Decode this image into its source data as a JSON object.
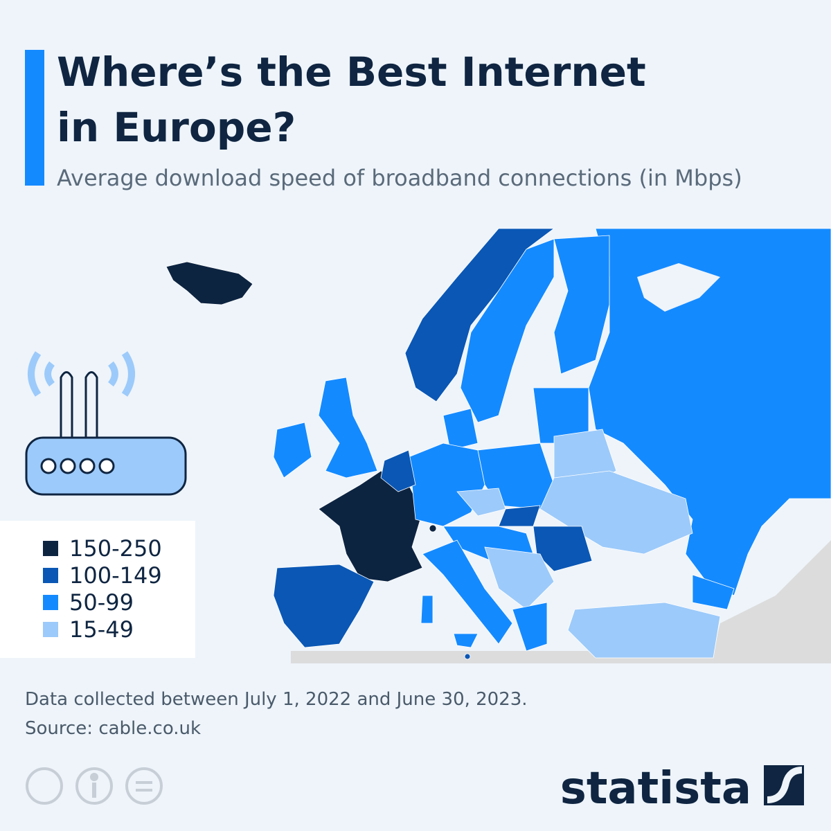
{
  "header": {
    "title_lines": [
      "Where’s the Best Internet",
      "in Europe?"
    ],
    "subtitle": "Average download speed of broadband connections (in Mbps)"
  },
  "legend": {
    "items": [
      {
        "label": "150-250",
        "color": "#0d2441"
      },
      {
        "label": "100-149",
        "color": "#0a57b5"
      },
      {
        "label": "50-99",
        "color": "#148aff"
      },
      {
        "label": "15-49",
        "color": "#9ccafa"
      }
    ]
  },
  "footer": {
    "notes": [
      "Data collected between July 1, 2022 and June 30, 2023.",
      "Source: cable.co.uk"
    ],
    "brand": "statista"
  }
}
